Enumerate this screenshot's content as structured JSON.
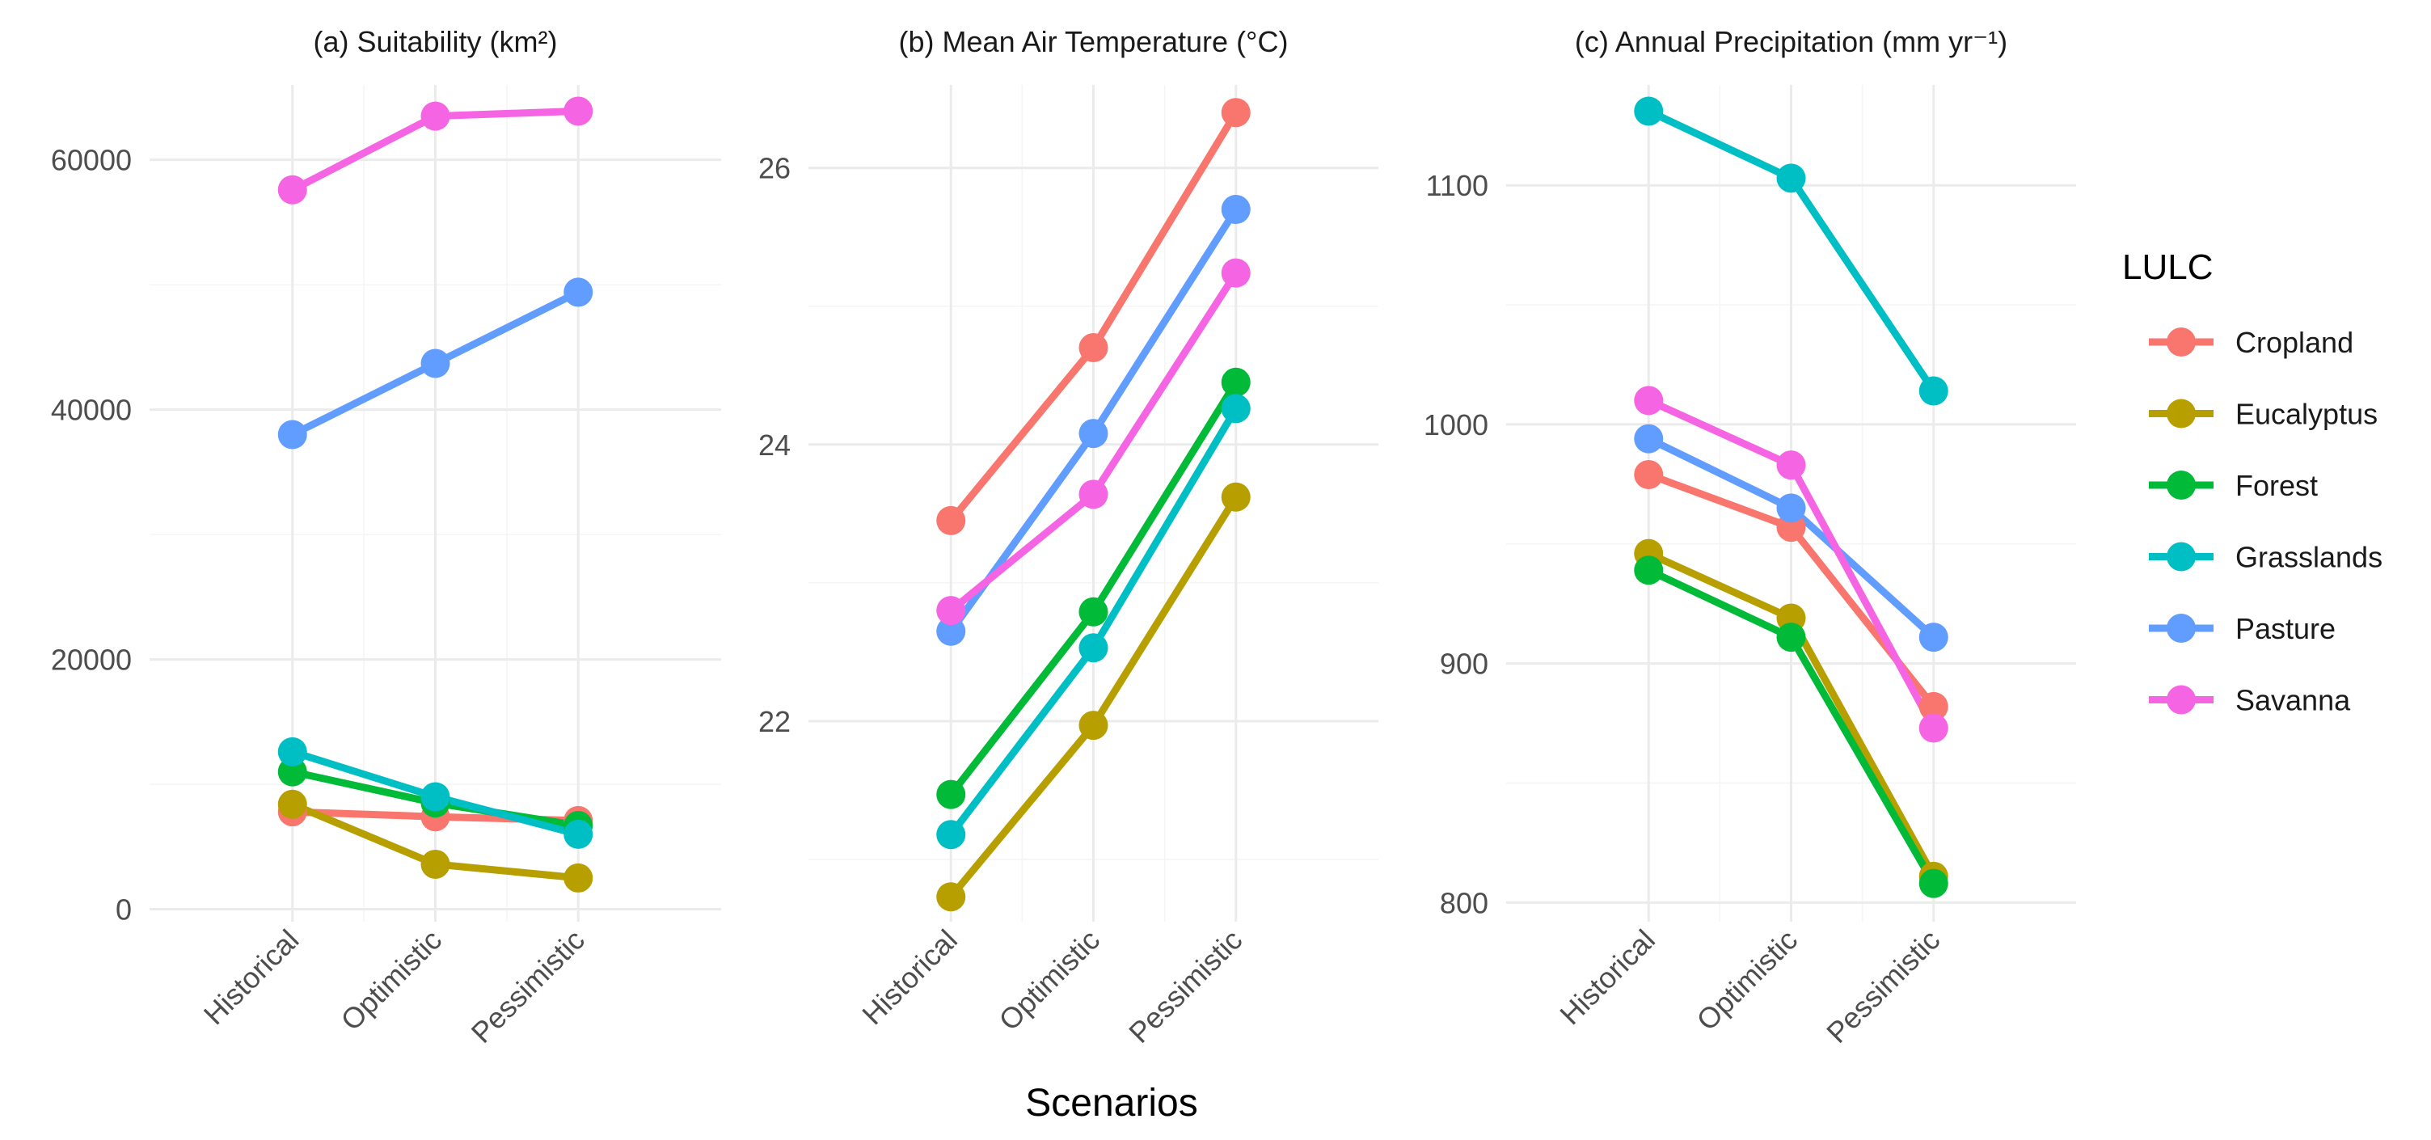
{
  "colors": {
    "Cropland": "#F8766D",
    "Eucalyptus": "#B79F00",
    "Forest": "#00BA38",
    "Grasslands": "#00BFC4",
    "Pasture": "#619CFF",
    "Savanna": "#F564E3"
  },
  "xlabel": "Scenarios",
  "legend": {
    "title": "LULC",
    "placement": "right",
    "entries": [
      "Cropland",
      "Eucalyptus",
      "Forest",
      "Grasslands",
      "Pasture",
      "Savanna"
    ]
  },
  "chart_data": [
    {
      "type": "line",
      "title": "(a) Suitability (km²)",
      "categories": [
        "Historical",
        "Optimistic",
        "Pessimistic"
      ],
      "ylim": [
        -1000,
        66000
      ],
      "yticks": [
        0,
        20000,
        40000,
        60000
      ],
      "ytick_labels": [
        "0",
        "20000",
        "40000",
        "60000"
      ],
      "grid": true,
      "series": [
        {
          "name": "Cropland",
          "values": [
            7800,
            7400,
            7100
          ]
        },
        {
          "name": "Eucalyptus",
          "values": [
            8400,
            3600,
            2500
          ]
        },
        {
          "name": "Forest",
          "values": [
            11000,
            8500,
            6700
          ]
        },
        {
          "name": "Grasslands",
          "values": [
            12600,
            9000,
            6000
          ]
        },
        {
          "name": "Pasture",
          "values": [
            38000,
            43700,
            49400
          ]
        },
        {
          "name": "Savanna",
          "values": [
            57600,
            63500,
            63900
          ]
        }
      ]
    },
    {
      "type": "line",
      "title": "(b) Mean Air Temperature (°C)",
      "categories": [
        "Historical",
        "Optimistic",
        "Pessimistic"
      ],
      "ylim": [
        20.55,
        26.6
      ],
      "yticks": [
        22,
        24,
        26
      ],
      "ytick_labels": [
        "22",
        "24",
        "26"
      ],
      "grid": true,
      "series": [
        {
          "name": "Cropland",
          "values": [
            23.45,
            24.7,
            26.4
          ]
        },
        {
          "name": "Eucalyptus",
          "values": [
            20.73,
            21.97,
            23.62
          ]
        },
        {
          "name": "Forest",
          "values": [
            21.47,
            22.79,
            24.45
          ]
        },
        {
          "name": "Grasslands",
          "values": [
            21.18,
            22.53,
            24.26
          ]
        },
        {
          "name": "Pasture",
          "values": [
            22.65,
            24.08,
            25.7
          ]
        },
        {
          "name": "Savanna",
          "values": [
            22.8,
            23.64,
            25.24
          ]
        }
      ]
    },
    {
      "type": "line",
      "title": "(c) Annual Precipitation (mm yr⁻¹)",
      "categories": [
        "Historical",
        "Optimistic",
        "Pessimistic"
      ],
      "ylim": [
        792,
        1142
      ],
      "yticks": [
        800,
        900,
        1000,
        1100
      ],
      "ytick_labels": [
        "800",
        "900",
        "1000",
        "1100"
      ],
      "grid": true,
      "series": [
        {
          "name": "Cropland",
          "values": [
            979,
            957,
            882
          ]
        },
        {
          "name": "Eucalyptus",
          "values": [
            946,
            919,
            811
          ]
        },
        {
          "name": "Forest",
          "values": [
            939,
            911,
            808
          ]
        },
        {
          "name": "Grasslands",
          "values": [
            1131,
            1103,
            1014
          ]
        },
        {
          "name": "Pasture",
          "values": [
            994,
            965,
            911
          ]
        },
        {
          "name": "Savanna",
          "values": [
            1010,
            983,
            873
          ]
        }
      ]
    }
  ]
}
